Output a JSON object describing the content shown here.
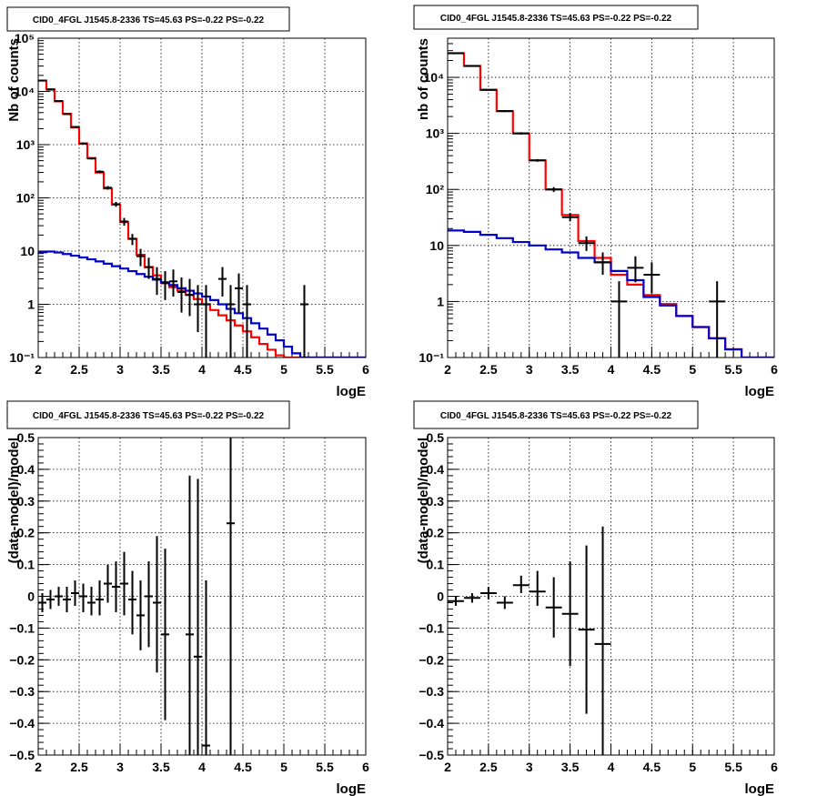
{
  "chart_data": [
    {
      "type": "histogram",
      "title": "CID0_4FGL J1545.8-2336 TS=45.63 PS=-0.22 PS=-0.22",
      "xlabel": "logE",
      "ylabel": "Nb of counts",
      "xlim": [
        2,
        6
      ],
      "ylim": [
        0.1,
        100000
      ],
      "yscale": "log",
      "grid": true,
      "xticks": [
        "2",
        "2.5",
        "3",
        "3.5",
        "4",
        "4.5",
        "5",
        "5.5",
        "6"
      ],
      "yticks": [
        "10⁻¹",
        "1",
        "10",
        "10²",
        "10³",
        "10⁴",
        "10⁵"
      ],
      "bin_edges": [
        2.0,
        2.1,
        2.2,
        2.3,
        2.4,
        2.5,
        2.6,
        2.7,
        2.8,
        2.9,
        3.0,
        3.1,
        3.2,
        3.3,
        3.4,
        3.5,
        3.6,
        3.7,
        3.8,
        3.9,
        4.0,
        4.1,
        4.2,
        4.3,
        4.4,
        4.5,
        4.6,
        4.7,
        4.8,
        4.9,
        5.0,
        5.1,
        5.2,
        5.3,
        5.4,
        5.5,
        5.6,
        5.7,
        5.8,
        5.9,
        6.0
      ],
      "series": [
        {
          "color": "#ff0000",
          "style": "hist",
          "values": [
            16000,
            11000,
            6500,
            3800,
            2100,
            1050,
            560,
            300,
            150,
            75,
            35,
            17,
            8.5,
            5,
            3.5,
            2.5,
            2.1,
            1.8,
            1.5,
            1.25,
            1.0,
            0.78,
            0.62,
            0.5,
            0.4,
            0.31,
            0.24,
            0.18,
            0.14,
            0.11,
            0.1,
            0.1,
            0.1,
            0.1,
            0.1,
            0.1,
            0.1,
            0.1,
            0.1,
            0.1
          ]
        },
        {
          "color": "#0000cc",
          "style": "hist",
          "values": [
            9.5,
            9.8,
            9.4,
            8.8,
            8.2,
            7.6,
            7.0,
            6.4,
            5.8,
            5.2,
            4.7,
            4.2,
            3.7,
            3.3,
            2.9,
            2.6,
            2.3,
            2.0,
            1.8,
            1.6,
            1.4,
            1.2,
            1.0,
            0.82,
            0.68,
            0.55,
            0.44,
            0.35,
            0.27,
            0.21,
            0.16,
            0.12,
            0.1,
            0.1,
            0.1,
            0.1,
            0.1,
            0.1,
            0.1,
            0.1
          ]
        },
        {
          "color": "#000000",
          "style": "points",
          "points": [
            {
              "x": 2.05,
              "y": 16000,
              "lo": 15800,
              "hi": 16200
            },
            {
              "x": 2.15,
              "y": 10800,
              "lo": 10600,
              "hi": 11000
            },
            {
              "x": 2.25,
              "y": 6600,
              "lo": 6450,
              "hi": 6750
            },
            {
              "x": 2.35,
              "y": 3750,
              "lo": 3650,
              "hi": 3850
            },
            {
              "x": 2.45,
              "y": 2150,
              "lo": 2070,
              "hi": 2230
            },
            {
              "x": 2.55,
              "y": 1050,
              "lo": 1000,
              "hi": 1100
            },
            {
              "x": 2.65,
              "y": 550,
              "lo": 525,
              "hi": 575
            },
            {
              "x": 2.75,
              "y": 310,
              "lo": 292,
              "hi": 328
            },
            {
              "x": 2.85,
              "y": 155,
              "lo": 143,
              "hi": 167
            },
            {
              "x": 2.95,
              "y": 76,
              "lo": 68,
              "hi": 84
            },
            {
              "x": 3.05,
              "y": 36,
              "lo": 30,
              "hi": 42
            },
            {
              "x": 3.15,
              "y": 17,
              "lo": 13,
              "hi": 21
            },
            {
              "x": 3.25,
              "y": 8,
              "lo": 5.2,
              "hi": 11
            },
            {
              "x": 3.35,
              "y": 5,
              "lo": 3,
              "hi": 7.5
            },
            {
              "x": 3.45,
              "y": 3,
              "lo": 1.5,
              "hi": 5
            },
            {
              "x": 3.55,
              "y": 2.5,
              "lo": 1.2,
              "hi": 4.2
            },
            {
              "x": 3.65,
              "y": 2.7,
              "lo": 1.4,
              "hi": 4.5
            },
            {
              "x": 3.75,
              "y": 1.7,
              "lo": 0.7,
              "hi": 3.2
            },
            {
              "x": 3.85,
              "y": 1.5,
              "lo": 0.6,
              "hi": 3
            },
            {
              "x": 3.95,
              "y": 1,
              "lo": 0.3,
              "hi": 2.3
            },
            {
              "x": 4.05,
              "y": 1,
              "lo": 0.1,
              "hi": 2.3
            },
            {
              "x": 4.25,
              "y": 3,
              "lo": 1.4,
              "hi": 5
            },
            {
              "x": 4.35,
              "y": 1,
              "lo": 0.1,
              "hi": 2.3
            },
            {
              "x": 4.45,
              "y": 2,
              "lo": 0.7,
              "hi": 3.8
            },
            {
              "x": 4.55,
              "y": 1,
              "lo": 0.1,
              "hi": 2.3
            },
            {
              "x": 5.25,
              "y": 1,
              "lo": 0.1,
              "hi": 2.3
            }
          ]
        }
      ]
    },
    {
      "type": "histogram",
      "title": "CID0_4FGL J1545.8-2336 TS=45.63 PS=-0.22 PS=-0.22",
      "xlabel": "logE",
      "ylabel": "nb of counts",
      "xlim": [
        2,
        6
      ],
      "ylim": [
        0.1,
        50000
      ],
      "yscale": "log",
      "grid": true,
      "xticks": [
        "2",
        "2.5",
        "3",
        "3.5",
        "4",
        "4.5",
        "5",
        "5.5",
        "6"
      ],
      "yticks": [
        "10⁻¹",
        "1",
        "10",
        "10²",
        "10³",
        "10⁴"
      ],
      "bin_edges": [
        2.0,
        2.2,
        2.4,
        2.6,
        2.8,
        3.0,
        3.2,
        3.4,
        3.6,
        3.8,
        4.0,
        4.2,
        4.4,
        4.6,
        4.8,
        5.0,
        5.2,
        5.4,
        5.6,
        5.8,
        6.0
      ],
      "series": [
        {
          "color": "#ff0000",
          "style": "hist",
          "values": [
            27000,
            16000,
            6000,
            2500,
            1000,
            330,
            100,
            35,
            12,
            6,
            3,
            2,
            1.3,
            0.9,
            0.55,
            0.35,
            0.22,
            0.14,
            0.1,
            0.1
          ]
        },
        {
          "color": "#0000cc",
          "style": "hist",
          "values": [
            18.5,
            17.5,
            15.5,
            13.5,
            11.5,
            10,
            8.5,
            7.5,
            6,
            5,
            3.5,
            2.4,
            1.2,
            0.85,
            0.55,
            0.35,
            0.22,
            0.14,
            0.1,
            0.1
          ]
        },
        {
          "color": "#000000",
          "style": "points",
          "points": [
            {
              "x": 2.1,
              "y": 27000,
              "lo": 26800,
              "hi": 27200
            },
            {
              "x": 2.3,
              "y": 16000,
              "lo": 15800,
              "hi": 16200
            },
            {
              "x": 2.5,
              "y": 6000,
              "lo": 5850,
              "hi": 6150
            },
            {
              "x": 2.7,
              "y": 2500,
              "lo": 2400,
              "hi": 2600
            },
            {
              "x": 2.9,
              "y": 1000,
              "lo": 950,
              "hi": 1050
            },
            {
              "x": 3.1,
              "y": 330,
              "lo": 312,
              "hi": 348
            },
            {
              "x": 3.3,
              "y": 100,
              "lo": 90,
              "hi": 110
            },
            {
              "x": 3.5,
              "y": 32,
              "lo": 27,
              "hi": 38
            },
            {
              "x": 3.7,
              "y": 11,
              "lo": 8,
              "hi": 14.5
            },
            {
              "x": 3.9,
              "y": 5,
              "lo": 3,
              "hi": 7.5
            },
            {
              "x": 4.1,
              "y": 1,
              "lo": 0.1,
              "hi": 2.3
            },
            {
              "x": 4.3,
              "y": 4,
              "lo": 2.2,
              "hi": 6.4
            },
            {
              "x": 4.5,
              "y": 3,
              "lo": 1.4,
              "hi": 5
            },
            {
              "x": 5.3,
              "y": 1,
              "lo": 0.1,
              "hi": 2.3
            }
          ]
        }
      ]
    },
    {
      "type": "scatter",
      "title": "CID0_4FGL J1545.8-2336 TS=45.63 PS=-0.22 PS=-0.22",
      "xlabel": "logE",
      "ylabel": "(data-model)/model",
      "xlim": [
        2,
        6
      ],
      "ylim": [
        -0.5,
        0.5
      ],
      "grid": true,
      "xticks": [
        "2",
        "2.5",
        "3",
        "3.5",
        "4",
        "4.5",
        "5",
        "5.5",
        "6"
      ],
      "yticks": [
        "−0.5",
        "−0.4",
        "−0.3",
        "−0.2",
        "−0.1",
        "0",
        "0.1",
        "0.2",
        "0.3",
        "0.4",
        "0.5"
      ],
      "xerr": 0.05,
      "series": [
        {
          "color": "#000000",
          "style": "points",
          "points": [
            {
              "x": 2.05,
              "y": -0.02,
              "lo": -0.05,
              "hi": 0.01
            },
            {
              "x": 2.15,
              "y": -0.01,
              "lo": -0.04,
              "hi": 0.02
            },
            {
              "x": 2.25,
              "y": 0.0,
              "lo": -0.03,
              "hi": 0.03
            },
            {
              "x": 2.35,
              "y": -0.01,
              "lo": -0.05,
              "hi": 0.03
            },
            {
              "x": 2.45,
              "y": 0.01,
              "lo": -0.03,
              "hi": 0.05
            },
            {
              "x": 2.55,
              "y": 0.0,
              "lo": -0.05,
              "hi": 0.04
            },
            {
              "x": 2.65,
              "y": -0.02,
              "lo": -0.06,
              "hi": 0.03
            },
            {
              "x": 2.75,
              "y": -0.01,
              "lo": -0.06,
              "hi": 0.05
            },
            {
              "x": 2.85,
              "y": 0.04,
              "lo": -0.02,
              "hi": 0.1
            },
            {
              "x": 2.95,
              "y": 0.03,
              "lo": -0.05,
              "hi": 0.11
            },
            {
              "x": 3.05,
              "y": 0.04,
              "lo": -0.06,
              "hi": 0.14
            },
            {
              "x": 3.15,
              "y": -0.01,
              "lo": -0.12,
              "hi": 0.08
            },
            {
              "x": 3.25,
              "y": -0.06,
              "lo": -0.17,
              "hi": 0.05
            },
            {
              "x": 3.35,
              "y": 0.0,
              "lo": -0.16,
              "hi": 0.11
            },
            {
              "x": 3.45,
              "y": -0.02,
              "lo": -0.24,
              "hi": 0.19
            },
            {
              "x": 3.55,
              "y": -0.12,
              "lo": -0.39,
              "hi": 0.15
            },
            {
              "x": 3.85,
              "y": -0.12,
              "lo": -0.5,
              "hi": 0.38
            },
            {
              "x": 3.95,
              "y": -0.19,
              "lo": -0.5,
              "hi": 0.37
            },
            {
              "x": 4.05,
              "y": -0.47,
              "lo": -0.5,
              "hi": 0.05
            },
            {
              "x": 4.35,
              "y": 0.23,
              "lo": -0.5,
              "hi": 0.5
            }
          ]
        }
      ]
    },
    {
      "type": "scatter",
      "title": "CID0_4FGL J1545.8-2336 TS=45.63 PS=-0.22 PS=-0.22",
      "xlabel": "logE",
      "ylabel": "(data-model)/model",
      "xlim": [
        2,
        6
      ],
      "ylim": [
        -0.5,
        0.5
      ],
      "grid": true,
      "xticks": [
        "2",
        "2.5",
        "3",
        "3.5",
        "4",
        "4.5",
        "5",
        "5.5",
        "6"
      ],
      "yticks": [
        "−0.5",
        "−0.4",
        "−0.3",
        "−0.2",
        "−0.1",
        "0",
        "0.1",
        "0.2",
        "0.3",
        "0.4",
        "0.5"
      ],
      "xerr": 0.1,
      "series": [
        {
          "color": "#000000",
          "style": "points",
          "points": [
            {
              "x": 2.1,
              "y": -0.015,
              "lo": -0.03,
              "hi": 0.0
            },
            {
              "x": 2.3,
              "y": -0.005,
              "lo": -0.02,
              "hi": 0.01
            },
            {
              "x": 2.5,
              "y": 0.01,
              "lo": -0.01,
              "hi": 0.03
            },
            {
              "x": 2.7,
              "y": -0.02,
              "lo": -0.04,
              "hi": 0.0
            },
            {
              "x": 2.9,
              "y": 0.035,
              "lo": 0.01,
              "hi": 0.065
            },
            {
              "x": 3.1,
              "y": 0.015,
              "lo": -0.03,
              "hi": 0.08
            },
            {
              "x": 3.3,
              "y": -0.035,
              "lo": -0.13,
              "hi": 0.06
            },
            {
              "x": 3.5,
              "y": -0.055,
              "lo": -0.22,
              "hi": 0.11
            },
            {
              "x": 3.7,
              "y": -0.105,
              "lo": -0.37,
              "hi": 0.16
            },
            {
              "x": 3.9,
              "y": -0.15,
              "lo": -0.5,
              "hi": 0.22
            }
          ]
        }
      ]
    }
  ]
}
